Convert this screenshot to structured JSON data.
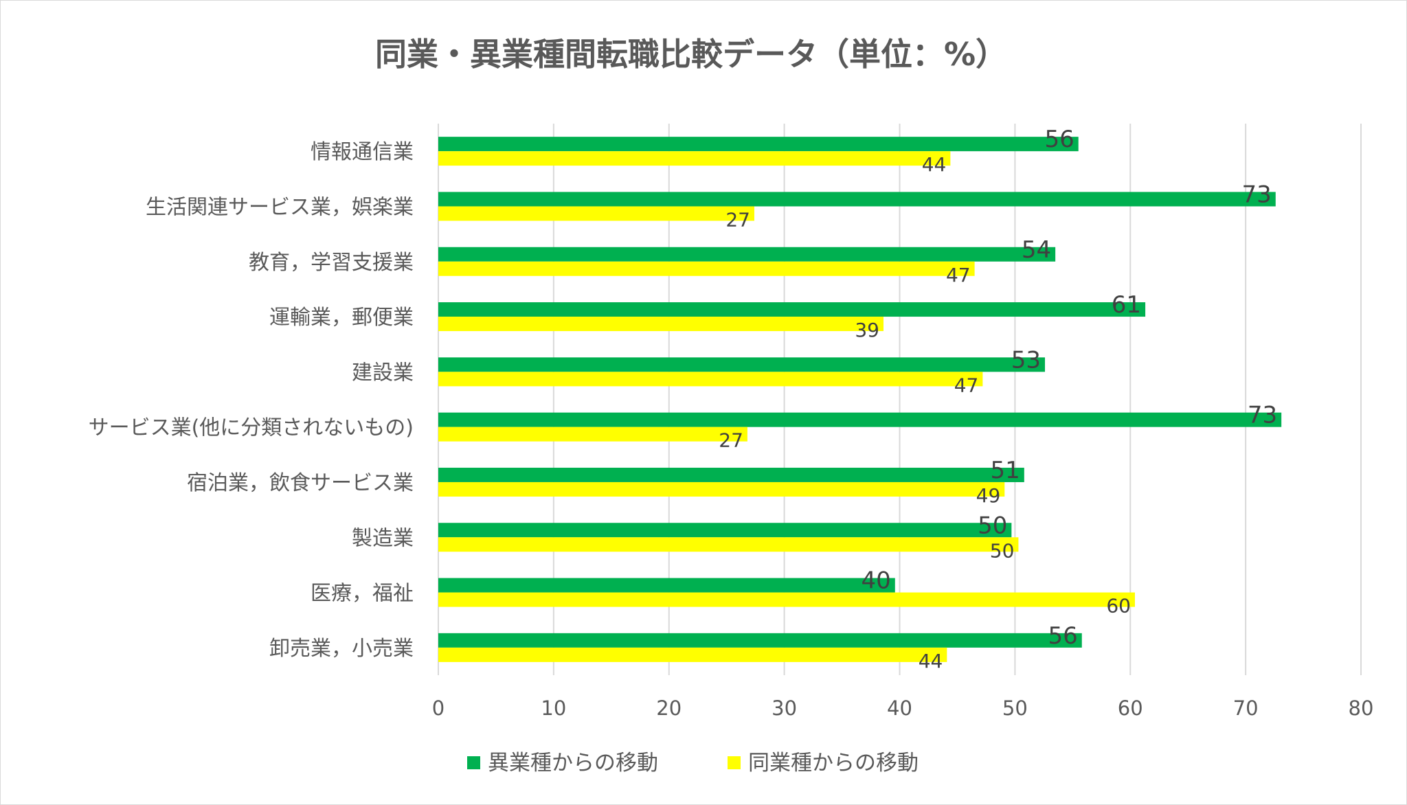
{
  "chart_data": {
    "type": "bar",
    "orientation": "horizontal",
    "title": "同業・異業種間転職比較データ（単位：%）",
    "xlabel": "",
    "ylabel": "",
    "xlim": [
      0,
      80
    ],
    "xticks": [
      0,
      10,
      20,
      30,
      40,
      50,
      60,
      70,
      80
    ],
    "grid": true,
    "legend_position": "bottom",
    "categories": [
      "情報通信業",
      "生活関連サービス業，娯楽業",
      "教育，学習支援業",
      "運輸業，郵便業",
      "建設業",
      "サービス業(他に分類されないもの)",
      "宿泊業，飲食サービス業",
      "製造業",
      "医療，福祉",
      "卸売業，小売業"
    ],
    "series": [
      {
        "name": "異業種からの移動",
        "color": "#00b050",
        "values": [
          55.5,
          72.6,
          53.5,
          61.3,
          52.6,
          73.1,
          50.8,
          49.7,
          39.6,
          55.8
        ],
        "labels": [
          "56",
          "73",
          "54",
          "61",
          "53",
          "73",
          "51",
          "50",
          "40",
          "56"
        ]
      },
      {
        "name": "同業種からの移動",
        "color": "#ffff00",
        "values": [
          44.4,
          27.4,
          46.5,
          38.6,
          47.2,
          26.8,
          49.1,
          50.3,
          60.4,
          44.1
        ],
        "labels": [
          "44",
          "27",
          "47",
          "39",
          "47",
          "27",
          "49",
          "50",
          "60",
          "44"
        ]
      }
    ]
  }
}
